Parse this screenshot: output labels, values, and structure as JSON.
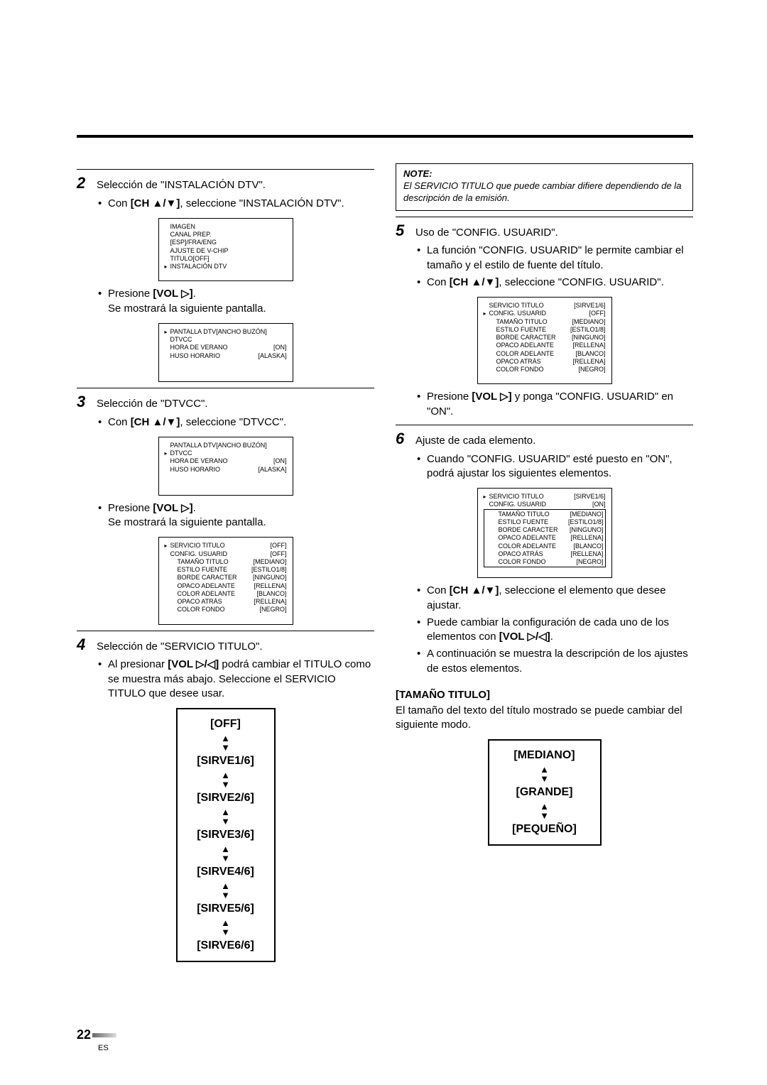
{
  "page_number": "22",
  "page_lang": "ES",
  "left": {
    "step2": {
      "title": "Selección de \"INSTALACIÓN DTV\".",
      "b1_pre": "Con ",
      "b1_bold": "[CH ▲/▼]",
      "b1_post": ", seleccione \"INSTALACIÓN DTV\".",
      "menu1": [
        {
          "lbl": "IMAGEN"
        },
        {
          "lbl": "CANAL PREP."
        },
        {
          "lbl": "[ESP]/FRA/ENG"
        },
        {
          "lbl": "AJUSTE DE V-CHIP"
        },
        {
          "lbl": "TITULO[OFF]"
        },
        {
          "lbl": "INSTALACIÓN DTV",
          "arrow": true
        }
      ],
      "b2_pre": "Presione ",
      "b2_bold": "[VOL ▷]",
      "b2_post": ".",
      "b2_line2": "Se mostrará la siguiente pantalla.",
      "menu2": [
        {
          "lbl": "PANTALLA DTV[ANCHO BUZÓN]",
          "arrow": true
        },
        {
          "lbl": "DTVCC"
        },
        {
          "lbl": "HORA DE VERANO",
          "val": "[ON]"
        },
        {
          "lbl": "HUSO HORARIO",
          "val": "[ALASKA]"
        }
      ]
    },
    "step3": {
      "title": "Selección de \"DTVCC\".",
      "b1_pre": "Con ",
      "b1_bold": "[CH ▲/▼]",
      "b1_post": ", seleccione \"DTVCC\".",
      "menu1": [
        {
          "lbl": "PANTALLA DTV[ANCHO BUZÓN]"
        },
        {
          "lbl": "DTVCC",
          "arrow": true
        },
        {
          "lbl": "HORA DE VERANO",
          "val": "[ON]"
        },
        {
          "lbl": "HUSO HORARIO",
          "val": "[ALASKA]"
        }
      ],
      "b2_pre": "Presione ",
      "b2_bold": "[VOL ▷]",
      "b2_post": ".",
      "b2_line2": "Se mostrará la siguiente pantalla.",
      "menu2": [
        {
          "lbl": "SERVICIO TITULO",
          "val": "[OFF]",
          "arrow": true
        },
        {
          "lbl": "CONFIG. USUARID",
          "val": "[OFF]"
        },
        {
          "lbl": "TAMAÑO TITULO",
          "val": "[MEDIANO]",
          "indent": true
        },
        {
          "lbl": "ESTILO FUENTE",
          "val": "[ESTILO1/8]",
          "indent": true
        },
        {
          "lbl": "BORDE CARACTER",
          "val": "[NINGUNO]",
          "indent": true
        },
        {
          "lbl": "OPACO ADELANTE",
          "val": "[RELLENA]",
          "indent": true
        },
        {
          "lbl": "COLOR ADELANTE",
          "val": "[BLANCO]",
          "indent": true
        },
        {
          "lbl": "OPACO ATRÁS",
          "val": "[RELLENA]",
          "indent": true
        },
        {
          "lbl": "COLOR FONDO",
          "val": "[NEGRO]",
          "indent": true
        }
      ]
    },
    "step4": {
      "title": "Selección de \"SERVICIO TITULO\".",
      "b1_pre": "Al presionar ",
      "b1_bold": "[VOL ▷/◁]",
      "b1_post": " podrá cambiar el TITULO como se muestra más abajo. Seleccione el SERVICIO TITULO que desee usar.",
      "options": [
        "[OFF]",
        "[SIRVE1/6]",
        "[SIRVE2/6]",
        "[SIRVE3/6]",
        "[SIRVE4/6]",
        "[SIRVE5/6]",
        "[SIRVE6/6]"
      ]
    }
  },
  "right": {
    "note_title": "NOTE:",
    "note_body": "El SERVICIO TITULO que puede cambiar difiere dependiendo de la descripción de la emisión.",
    "step5": {
      "title": "Uso de \"CONFIG. USUARID\".",
      "b1": "La función \"CONFIG. USUARID\" le permite cambiar el tamaño y el estilo de fuente del título.",
      "b2_pre": "Con ",
      "b2_bold": "[CH ▲/▼]",
      "b2_post": ", seleccione \"CONFIG. USUARID\".",
      "menu1": [
        {
          "lbl": "SERVICIO TITULO",
          "val": "[SIRVE1/6]"
        },
        {
          "lbl": "CONFIG. USUARID",
          "val": "[OFF]",
          "arrow": true
        },
        {
          "lbl": "TAMAÑO TITULO",
          "val": "[MEDIANO]",
          "indent": true
        },
        {
          "lbl": "ESTILO FUENTE",
          "val": "[ESTILO1/8]",
          "indent": true
        },
        {
          "lbl": "BORDE CARACTER",
          "val": "[NINGUNO]",
          "indent": true
        },
        {
          "lbl": "OPACO ADELANTE",
          "val": "[RELLENA]",
          "indent": true
        },
        {
          "lbl": "COLOR ADELANTE",
          "val": "[BLANCO]",
          "indent": true
        },
        {
          "lbl": "OPACO ATRÁS",
          "val": "[RELLENA]",
          "indent": true
        },
        {
          "lbl": "COLOR FONDO",
          "val": "[NEGRO]",
          "indent": true
        }
      ],
      "b3_pre": "Presione ",
      "b3_bold": "[VOL ▷]",
      "b3_post": " y ponga \"CONFIG. USUARID\" en \"ON\"."
    },
    "step6": {
      "title": "Ajuste de cada elemento.",
      "b1": "Cuando \"CONFIG. USUARID\" esté puesto en \"ON\", podrá ajustar los siguientes elementos.",
      "menu1": [
        {
          "lbl": "SERVICIO TITULO",
          "val": "[SIRVE1/6]",
          "arrow": true
        },
        {
          "lbl": "CONFIG. USUARID",
          "val": "[ON]"
        },
        {
          "lbl": "TAMAÑO TITULO",
          "val": "[MEDIANO]",
          "indent": true,
          "boxed": "start"
        },
        {
          "lbl": "ESTILO FUENTE",
          "val": "[ESTILO1/8]",
          "indent": true
        },
        {
          "lbl": "BORDE CARACTER",
          "val": "[NINGUNO]",
          "indent": true
        },
        {
          "lbl": "OPACO ADELANTE",
          "val": "[RELLENA]",
          "indent": true
        },
        {
          "lbl": "COLOR ADELANTE",
          "val": "[BLANCO]",
          "indent": true
        },
        {
          "lbl": "OPACO ATRÁS",
          "val": "[RELLENA]",
          "indent": true
        },
        {
          "lbl": "COLOR FONDO",
          "val": "[NEGRO]",
          "indent": true,
          "boxed": "end"
        }
      ],
      "b2_pre": "Con ",
      "b2_bold": "[CH ▲/▼]",
      "b2_post": ", seleccione el elemento que desee ajustar.",
      "b3_pre": "Puede cambiar la configuración de cada uno de los elementos con ",
      "b3_bold": "[VOL ▷/◁]",
      "b3_post": ".",
      "b4": "A continuación se muestra la descripción de los ajustes de estos elementos."
    },
    "tamano": {
      "label": "[TAMAÑO TITULO]",
      "desc": "El tamaño del texto del título mostrado se puede cambiar del siguiente modo.",
      "options": [
        "[MEDIANO]",
        "[GRANDE]",
        "[PEQUEÑO]"
      ]
    }
  }
}
